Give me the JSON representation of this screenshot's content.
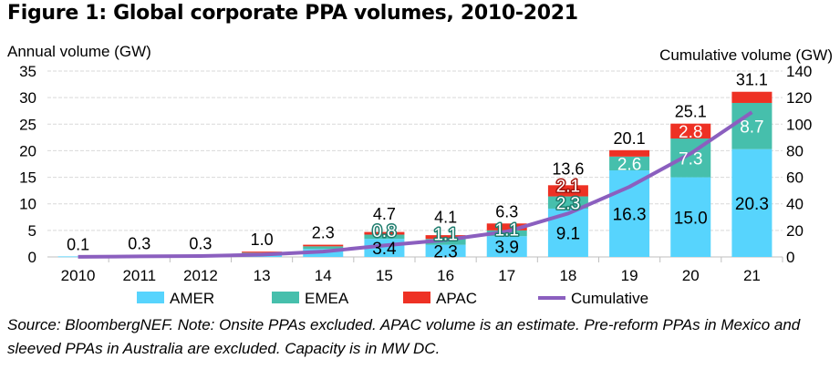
{
  "title": "Figure 1: Global corporate PPA volumes, 2010-2021",
  "note": "Source: BloombergNEF. Note: Onsite PPAs excluded. APAC volume is an estimate. Pre-reform PPAs in Mexico and sleeved PPAs in Australia are excluded. Capacity is in MW DC.",
  "colors": {
    "AMER": "#57d4fd",
    "EMEA": "#46bfac",
    "APAC": "#ee3124",
    "Cumulative": "#8b5fbf",
    "grid": "#d9d9d9"
  },
  "chart_data": {
    "type": "bar",
    "stacked": true,
    "categories": [
      "2010",
      "2011",
      "2012",
      "13",
      "14",
      "15",
      "16",
      "17",
      "18",
      "19",
      "20",
      "21"
    ],
    "ylabel": "Annual volume  (GW)",
    "y2label": "Cumulative  volume  (GW)",
    "ylim": [
      0,
      35
    ],
    "y2lim": [
      0,
      140
    ],
    "yticks": [
      "0",
      "5",
      "10",
      "15",
      "20",
      "25",
      "30",
      "35"
    ],
    "y2ticks": [
      "0",
      "20",
      "40",
      "60",
      "80",
      "100",
      "120",
      "140"
    ],
    "grid": true,
    "legend": "bottom",
    "series": [
      {
        "name": "AMER",
        "values": [
          0.1,
          0.3,
          0.3,
          0.6,
          1.5,
          3.4,
          2.3,
          3.9,
          9.1,
          16.3,
          15.0,
          20.3
        ],
        "labels": [
          null,
          null,
          null,
          null,
          null,
          "3.4",
          "2.3",
          "3.9",
          "9.1",
          "16.3",
          "15.0",
          "20.3"
        ]
      },
      {
        "name": "EMEA",
        "values": [
          0,
          0,
          0,
          0.2,
          0.5,
          0.8,
          1.1,
          1.1,
          2.3,
          2.6,
          7.3,
          8.7
        ],
        "labels": [
          null,
          null,
          null,
          null,
          null,
          "0.8",
          "1.1",
          "1.1",
          "2.3",
          "2.6",
          "7.3",
          "8.7"
        ]
      },
      {
        "name": "APAC",
        "values": [
          0,
          0,
          0,
          0.2,
          0.3,
          0.5,
          0.7,
          1.3,
          2.1,
          1.2,
          2.8,
          2.1
        ],
        "labels": [
          null,
          null,
          null,
          null,
          null,
          null,
          null,
          null,
          "2.1",
          null,
          "2.8",
          null
        ]
      },
      {
        "name": "Cumulative",
        "axis": "right",
        "type": "line",
        "values": [
          0.1,
          0.4,
          0.7,
          1.7,
          4.0,
          8.7,
          12.8,
          19.1,
          32.7,
          52.8,
          77.9,
          109
        ]
      }
    ],
    "totals": [
      "0.1",
      "0.3",
      "0.3",
      "1.0",
      "2.3",
      "4.7",
      "4.1",
      "6.3",
      "13.6",
      "20.1",
      "25.1",
      "31.1"
    ]
  }
}
